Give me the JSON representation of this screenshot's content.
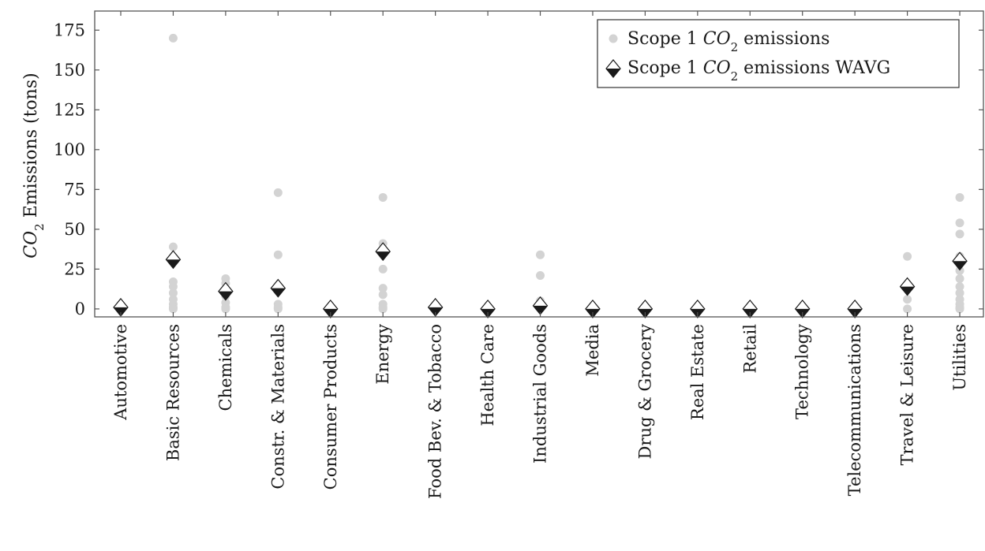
{
  "chart_data": {
    "type": "scatter",
    "ylabel": {
      "prefix": "CO",
      "sub": "2",
      "rest": " Emissions (tons)"
    },
    "ylim": [
      -5,
      187
    ],
    "yticks": [
      0,
      25,
      50,
      75,
      100,
      125,
      150,
      175
    ],
    "grid": false,
    "legend_position": "top-right",
    "categories": [
      "Automotive",
      "Basic Resources",
      "Chemicals",
      "Constr. & Materials",
      "Consumer Products",
      "Energy",
      "Food Bev. & Tobacco",
      "Health Care",
      "Industrial Goods",
      "Media",
      "Drug & Grocery",
      "Real Estate",
      "Retail",
      "Technology",
      "Telecommunications",
      "Travel & Leisure",
      "Utilities"
    ],
    "series": [
      {
        "name": {
          "prefix": "Scope 1 ",
          "co": "CO",
          "sub": "2",
          "rest": " emissions"
        },
        "marker": "circle",
        "color": "#d3d3d3",
        "points": [
          [
            0,
            0
          ],
          [
            1,
            170
          ],
          [
            1,
            39
          ],
          [
            1,
            17
          ],
          [
            1,
            14
          ],
          [
            1,
            10
          ],
          [
            1,
            6
          ],
          [
            1,
            3
          ],
          [
            1,
            1
          ],
          [
            1,
            0
          ],
          [
            2,
            19
          ],
          [
            2,
            16
          ],
          [
            2,
            8
          ],
          [
            2,
            4
          ],
          [
            2,
            1
          ],
          [
            2,
            0
          ],
          [
            3,
            73
          ],
          [
            3,
            34
          ],
          [
            3,
            14
          ],
          [
            3,
            3
          ],
          [
            3,
            1
          ],
          [
            3,
            0
          ],
          [
            4,
            0
          ],
          [
            5,
            70
          ],
          [
            5,
            41
          ],
          [
            5,
            25
          ],
          [
            5,
            13
          ],
          [
            5,
            9
          ],
          [
            5,
            3
          ],
          [
            5,
            1
          ],
          [
            5,
            0
          ],
          [
            6,
            0
          ],
          [
            7,
            0
          ],
          [
            8,
            34
          ],
          [
            8,
            21
          ],
          [
            8,
            5
          ],
          [
            8,
            1
          ],
          [
            9,
            0
          ],
          [
            10,
            0
          ],
          [
            11,
            0
          ],
          [
            12,
            0
          ],
          [
            13,
            0
          ],
          [
            14,
            0
          ],
          [
            15,
            33
          ],
          [
            15,
            14
          ],
          [
            15,
            6
          ],
          [
            15,
            0
          ],
          [
            16,
            70
          ],
          [
            16,
            54
          ],
          [
            16,
            47
          ],
          [
            16,
            33
          ],
          [
            16,
            24
          ],
          [
            16,
            19
          ],
          [
            16,
            14
          ],
          [
            16,
            10
          ],
          [
            16,
            6
          ],
          [
            16,
            3
          ],
          [
            16,
            1
          ],
          [
            16,
            0
          ]
        ]
      },
      {
        "name": {
          "prefix": "Scope 1 ",
          "co": "CO",
          "sub": "2",
          "rest": " emissions WAVG"
        },
        "marker": "diamond",
        "color": "#1a1a1a",
        "values": [
          1,
          31,
          11,
          13,
          0,
          36,
          1,
          0,
          2,
          0,
          0,
          0,
          0,
          0,
          0,
          14,
          30
        ]
      }
    ]
  }
}
